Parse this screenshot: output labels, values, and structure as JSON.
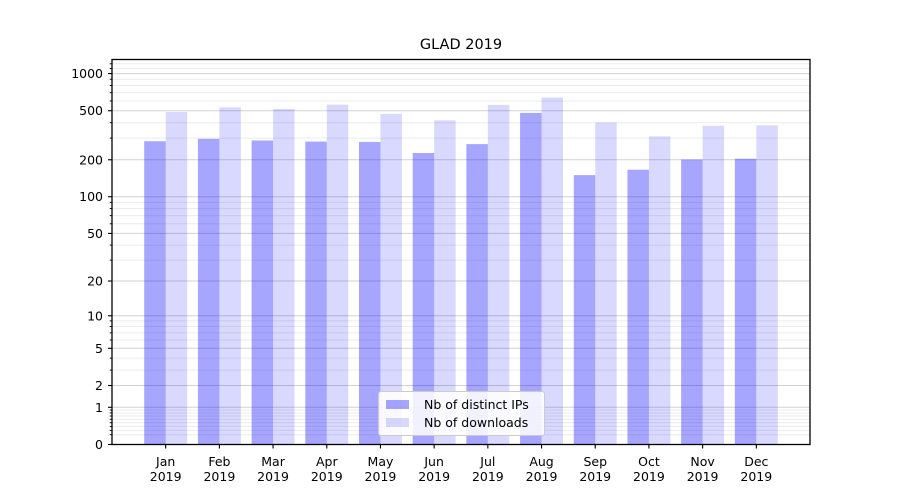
{
  "chart_data": {
    "type": "bar",
    "title": "GLAD 2019",
    "categories": [
      "Jan",
      "Feb",
      "Mar",
      "Apr",
      "May",
      "Jun",
      "Jul",
      "Aug",
      "Sep",
      "Oct",
      "Nov",
      "Dec"
    ],
    "year": "2019",
    "series": [
      {
        "name": "Nb of distinct IPs",
        "color": "rgba(0,0,255,0.35)",
        "values": [
          283,
          296,
          287,
          281,
          279,
          227,
          268,
          480,
          150,
          166,
          201,
          204
        ]
      },
      {
        "name": "Nb of downloads",
        "color": "rgba(0,0,255,0.15)",
        "values": [
          488,
          533,
          517,
          560,
          471,
          418,
          557,
          640,
          402,
          310,
          378,
          381
        ]
      }
    ],
    "yscale": "symlog-natural",
    "ylim": [
      0,
      1300
    ],
    "y_ticks": [
      1000,
      500,
      200,
      100,
      50,
      20,
      10,
      5,
      2,
      1,
      0
    ],
    "y_minor_ticks": [
      0.2,
      0.3,
      0.4,
      0.5,
      0.6,
      0.7,
      0.8,
      0.9,
      3,
      4,
      6,
      7,
      8,
      9,
      30,
      40,
      60,
      70,
      80,
      90,
      300,
      400,
      600,
      700,
      800,
      900,
      1100,
      1200
    ],
    "grid": true,
    "legend_position": "lower-center",
    "colors": {
      "major_grid": "#d2d2d2",
      "minor_grid": "#ececec",
      "axis": "#000000",
      "text": "#000000",
      "legend_border": "#cccccc"
    }
  }
}
